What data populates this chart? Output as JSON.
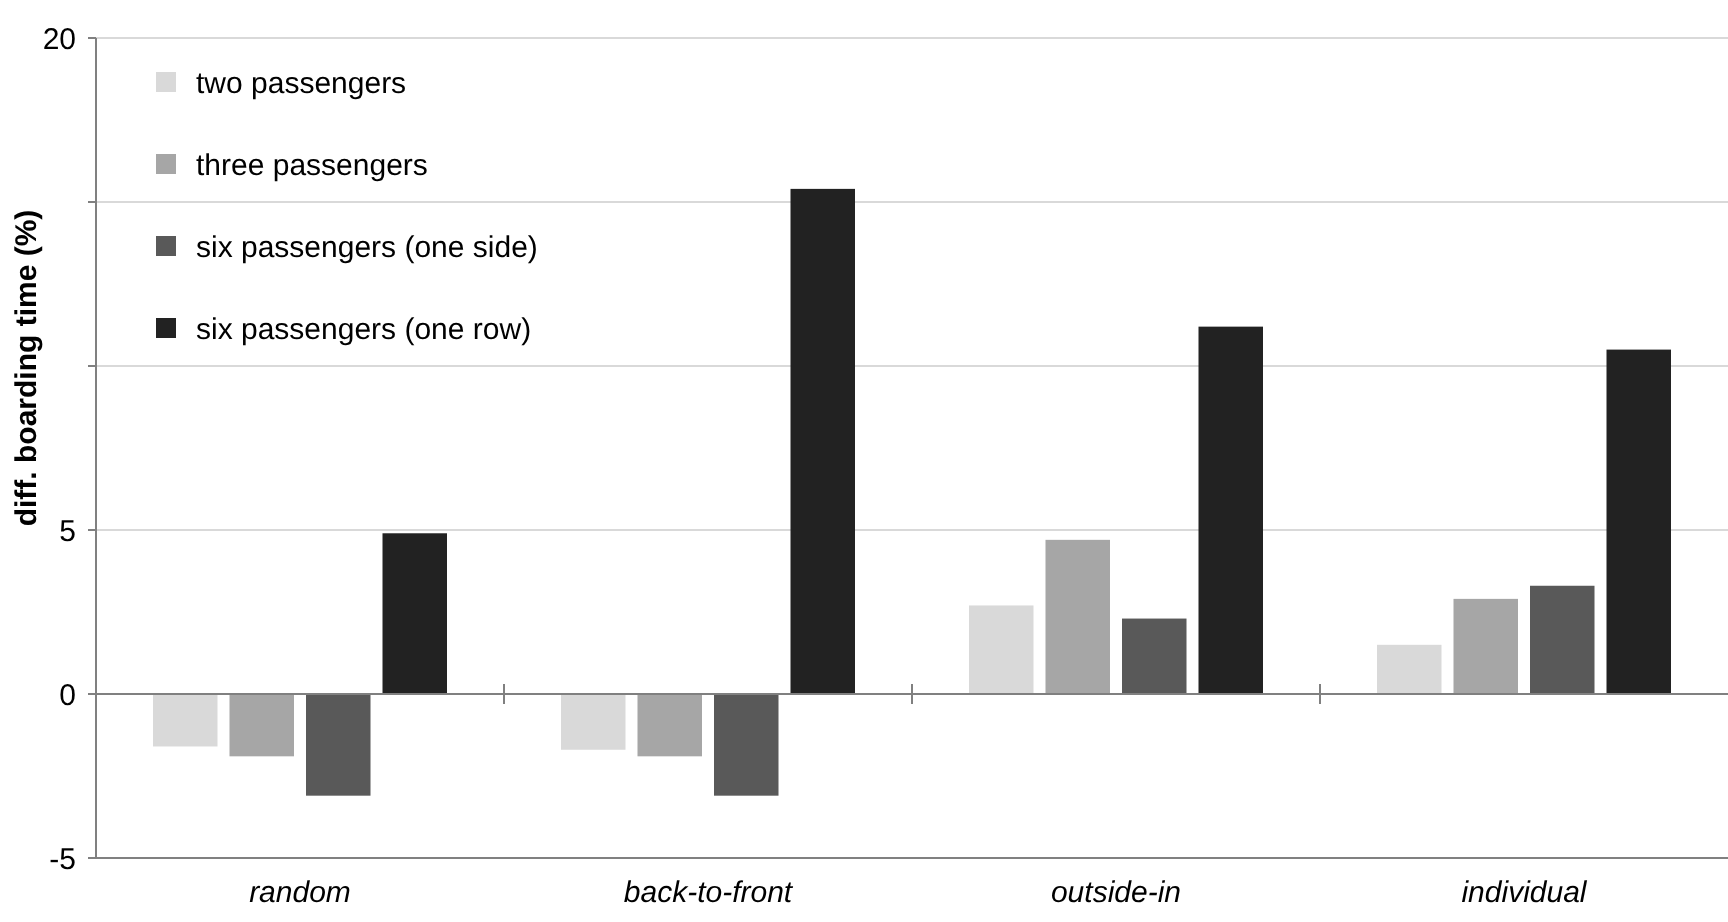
{
  "chart_data": {
    "type": "bar",
    "ylabel": "diff. boarding time (%)",
    "categories": [
      "random",
      "back-to-front",
      "outside-in",
      "individual"
    ],
    "series": [
      {
        "name": "two passengers",
        "color": "#d9d9d9",
        "values": [
          -1.6,
          -1.7,
          2.7,
          1.5
        ]
      },
      {
        "name": "three passengers",
        "color": "#a6a6a6",
        "values": [
          -1.9,
          -1.9,
          4.7,
          2.9
        ]
      },
      {
        "name": "six passengers (one side)",
        "color": "#595959",
        "values": [
          -3.1,
          -3.1,
          2.3,
          3.3
        ]
      },
      {
        "name": "six passengers (one row)",
        "color": "#222222",
        "values": [
          4.9,
          15.4,
          11.2,
          10.5
        ]
      }
    ],
    "ylim": [
      -5,
      20
    ],
    "yticks": [
      -5,
      0,
      5,
      {
        "value": 10,
        "label": null
      },
      {
        "value": 15,
        "label": null
      },
      20
    ],
    "grid": "y",
    "legend": "top left"
  }
}
